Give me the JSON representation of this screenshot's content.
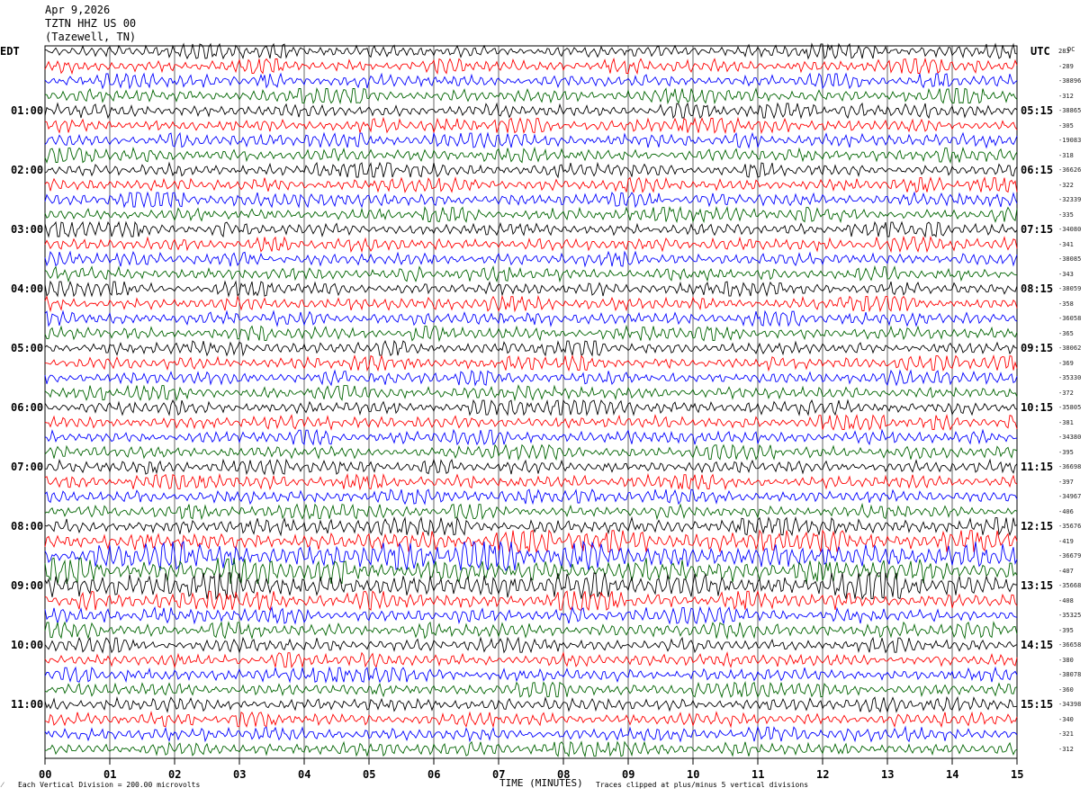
{
  "header": {
    "date": "Apr 9,2026",
    "station": "TZTN HHZ US 00",
    "location": "(Tazewell, TN)"
  },
  "left_tz": "EDT",
  "right_tz": "UTC",
  "dc_label": "DC",
  "chart_data": {
    "type": "line",
    "title": "",
    "xlabel": "TIME (MINUTES)",
    "ylabel": "",
    "xlim": [
      0,
      15
    ],
    "x_ticks": [
      "00",
      "01",
      "02",
      "03",
      "04",
      "05",
      "06",
      "07",
      "08",
      "09",
      "10",
      "11",
      "12",
      "13",
      "14",
      "15"
    ],
    "trace_count": 48,
    "trace_colors": [
      "#000000",
      "#ff0000",
      "#0000ff",
      "#006400"
    ],
    "left_hour_labels": [
      "01:00",
      "02:00",
      "03:00",
      "04:00",
      "05:00",
      "06:00",
      "07:00",
      "08:00",
      "09:00",
      "10:00",
      "11:00"
    ],
    "right_hour_labels": [
      "05:15",
      "06:15",
      "07:15",
      "08:15",
      "09:15",
      "10:15",
      "11:15",
      "12:15",
      "13:15",
      "14:15",
      "15:15"
    ],
    "trace_offsets": [
      "283",
      "-289",
      "-38896",
      "-312",
      "-38865",
      "-305",
      "-19083",
      "-318",
      "-36626",
      "-322",
      "-32339",
      "-335",
      "-34080",
      "-341",
      "-38085",
      "-343",
      "-38059",
      "-358",
      "-36058",
      "-365",
      "-38062",
      "-369",
      "-35330",
      "-372",
      "-35805",
      "-381",
      "-34380",
      "-395",
      "-36698",
      "-397",
      "-34967",
      "-406",
      "-35676",
      "-419",
      "-36679",
      "-407",
      "-35668",
      "-408",
      "-35325",
      "-395",
      "-36658",
      "-380",
      "-38078",
      "-360",
      "-34398",
      "-340",
      "-321",
      "-312"
    ],
    "trace_amplitudes": [
      1.0,
      1.0,
      1.0,
      1.0,
      1.0,
      1.0,
      1.0,
      1.0,
      1.0,
      1.0,
      1.0,
      1.0,
      1.0,
      1.0,
      1.0,
      1.0,
      1.0,
      1.0,
      1.0,
      1.0,
      1.0,
      1.0,
      1.0,
      1.0,
      1.0,
      1.0,
      1.0,
      1.0,
      1.0,
      1.0,
      1.0,
      1.0,
      1.2,
      1.5,
      2.0,
      1.8,
      1.8,
      1.3,
      1.1,
      1.1,
      1.0,
      1.0,
      1.0,
      1.0,
      1.0,
      1.0,
      1.0,
      1.0
    ],
    "grid": true
  },
  "footer": {
    "scale": "Each Vertical Division =  200.00 microvolts",
    "clip": "Traces clipped at plus/minus 5 vertical divisions"
  }
}
